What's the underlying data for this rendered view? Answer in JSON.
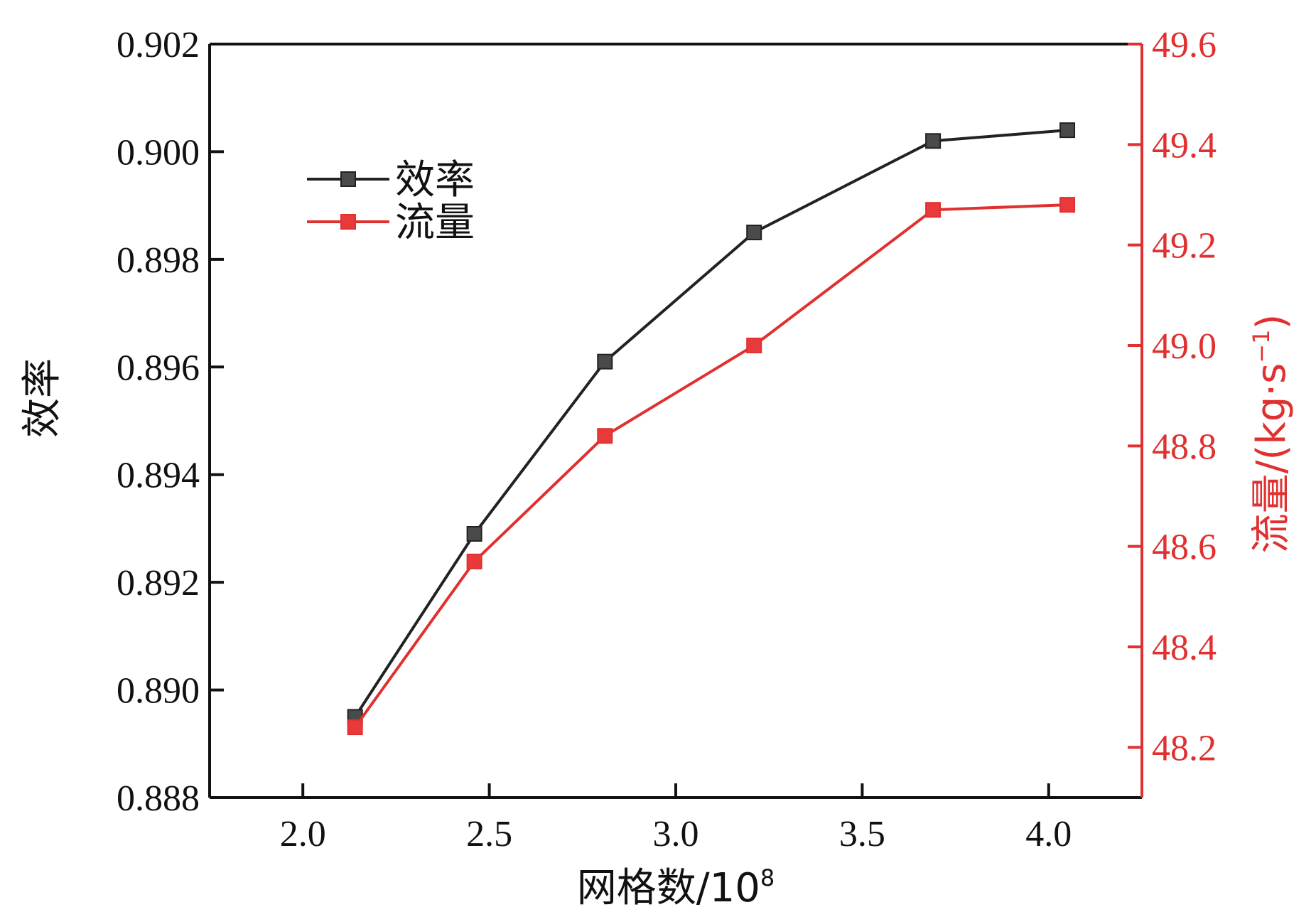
{
  "chart_data": {
    "type": "line",
    "title": "",
    "xlabel": "网格数/10",
    "xlabel_superscript": "8",
    "ylabel_left": "效率",
    "ylabel_right": "流量/(kg·s",
    "ylabel_right_superscript": "−1",
    "ylabel_right_suffix": ")",
    "xlim": [
      1.75,
      4.25
    ],
    "ylim_left": [
      0.888,
      0.902
    ],
    "ylim_right": [
      48.1,
      49.6
    ],
    "x_ticks": [
      "2.0",
      "2.5",
      "3.0",
      "3.5",
      "4.0"
    ],
    "x_tick_values": [
      2.0,
      2.5,
      3.0,
      3.5,
      4.0
    ],
    "y_left_ticks": [
      "0.888",
      "0.890",
      "0.892",
      "0.894",
      "0.896",
      "0.898",
      "0.900",
      "0.902"
    ],
    "y_left_tick_values": [
      0.888,
      0.89,
      0.892,
      0.894,
      0.896,
      0.898,
      0.9,
      0.902
    ],
    "y_right_ticks": [
      "48.2",
      "48.4",
      "48.6",
      "48.8",
      "49.0",
      "49.2",
      "49.4",
      "49.6"
    ],
    "y_right_tick_values": [
      48.2,
      48.4,
      48.6,
      48.8,
      49.0,
      49.2,
      49.4,
      49.6
    ],
    "grid": false,
    "legend_position": "top-left",
    "series": [
      {
        "name": "效率",
        "axis": "left",
        "color": "#222222",
        "marker_color": "#4a4a4a",
        "x": [
          2.14,
          2.46,
          2.81,
          3.21,
          3.69,
          4.05
        ],
        "values": [
          0.8895,
          0.8929,
          0.8961,
          0.8985,
          0.9002,
          0.9004
        ]
      },
      {
        "name": "流量",
        "axis": "right",
        "color": "#e03030",
        "marker_color": "#e83a3a",
        "x": [
          2.14,
          2.46,
          2.81,
          3.21,
          3.69,
          4.05
        ],
        "values": [
          48.24,
          48.57,
          48.82,
          49.0,
          49.27,
          49.28
        ]
      }
    ]
  },
  "colors": {
    "axis_left": "#111111",
    "axis_right": "#e03030"
  }
}
